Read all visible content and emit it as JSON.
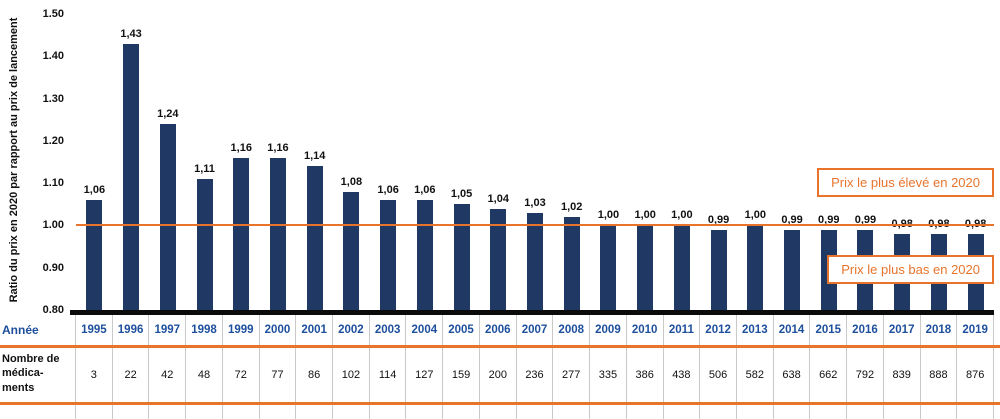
{
  "chart_data": {
    "type": "bar",
    "title": "",
    "xlabel": "",
    "ylabel": "Ratio du prix en 2020 par rapport au prix de lancement",
    "ylim": [
      0.8,
      1.5
    ],
    "yticks": [
      "1.50",
      "1.40",
      "1.30",
      "1.20",
      "1.10",
      "1.00",
      "0.90",
      "0.80"
    ],
    "grid": "off",
    "categories": [
      "1995",
      "1996",
      "1997",
      "1998",
      "1999",
      "2000",
      "2001",
      "2002",
      "2003",
      "2004",
      "2005",
      "2006",
      "2007",
      "2008",
      "2009",
      "2010",
      "2011",
      "2012",
      "2013",
      "2014",
      "2015",
      "2016",
      "2017",
      "2018",
      "2019"
    ],
    "values": [
      1.06,
      1.43,
      1.24,
      1.11,
      1.16,
      1.16,
      1.14,
      1.08,
      1.06,
      1.06,
      1.05,
      1.04,
      1.03,
      1.02,
      1.0,
      1.0,
      1.0,
      0.99,
      1.0,
      0.99,
      0.99,
      0.99,
      0.98,
      0.98,
      0.98
    ],
    "value_labels": [
      "1,06",
      "1,43",
      "1,24",
      "1,11",
      "1,16",
      "1,16",
      "1,14",
      "1,08",
      "1,06",
      "1,06",
      "1,05",
      "1,04",
      "1,03",
      "1,02",
      "1,00",
      "1,00",
      "1,00",
      "0,99",
      "1,00",
      "0,99",
      "0,99",
      "0,99",
      "0,98",
      "0,98",
      "0,98"
    ],
    "reference_line": {
      "value": 1.0
    },
    "annotations": [
      {
        "label": "Prix le plus élevé en 2020"
      },
      {
        "label": "Prix le plus bas en 2020"
      }
    ],
    "colors": {
      "bar": "#1F3864",
      "line": "#E8742C",
      "year_text": "#1D4F9C"
    }
  },
  "table": {
    "row1_header": "Année",
    "row2_header": "Nombre de médica-ments",
    "years": [
      "1995",
      "1996",
      "1997",
      "1998",
      "1999",
      "2000",
      "2001",
      "2002",
      "2003",
      "2004",
      "2005",
      "2006",
      "2007",
      "2008",
      "2009",
      "2010",
      "2011",
      "2012",
      "2013",
      "2014",
      "2015",
      "2016",
      "2017",
      "2018",
      "2019"
    ],
    "counts": [
      "3",
      "22",
      "42",
      "48",
      "72",
      "77",
      "86",
      "102",
      "114",
      "127",
      "159",
      "200",
      "236",
      "277",
      "335",
      "386",
      "438",
      "506",
      "582",
      "638",
      "662",
      "792",
      "839",
      "888",
      "876"
    ]
  }
}
